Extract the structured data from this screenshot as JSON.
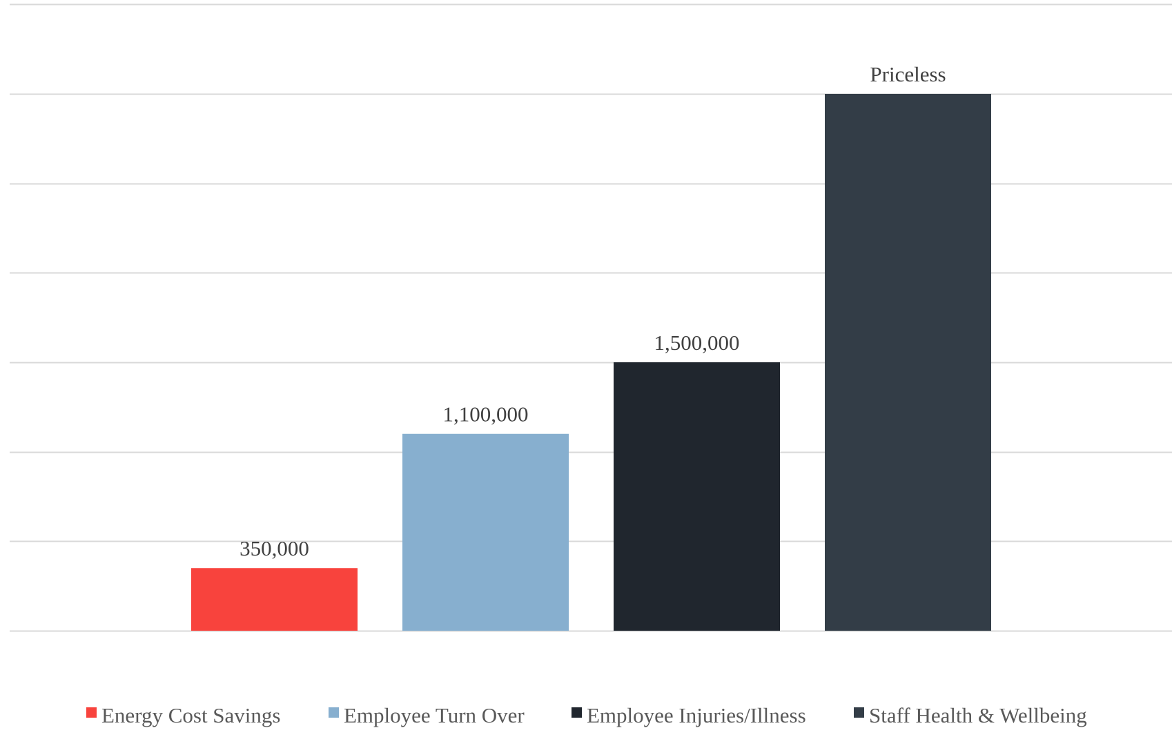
{
  "chart_data": {
    "type": "bar",
    "title": "",
    "xlabel": "",
    "ylabel": "",
    "ylim": [
      0,
      3000000
    ],
    "y_gridlines": [
      0,
      500000,
      1000000,
      1500000,
      2000000,
      2500000,
      3000000,
      3500000
    ],
    "y_tick_labels_visible": false,
    "grid": true,
    "legend_position": "bottom",
    "series": [
      {
        "name": "Energy Cost Savings",
        "value": 350000,
        "label": "350,000",
        "color": "#f8433d"
      },
      {
        "name": "Employee Turn Over",
        "value": 1100000,
        "label": "1,100,000",
        "color": "#87afcf"
      },
      {
        "name": "Employee Injuries/Illness",
        "value": 1500000,
        "label": "1,500,000",
        "color": "#20262e"
      },
      {
        "name": "Staff Health & Wellbeing",
        "value": 3000000,
        "label": "Priceless",
        "color": "#333d47"
      }
    ]
  }
}
